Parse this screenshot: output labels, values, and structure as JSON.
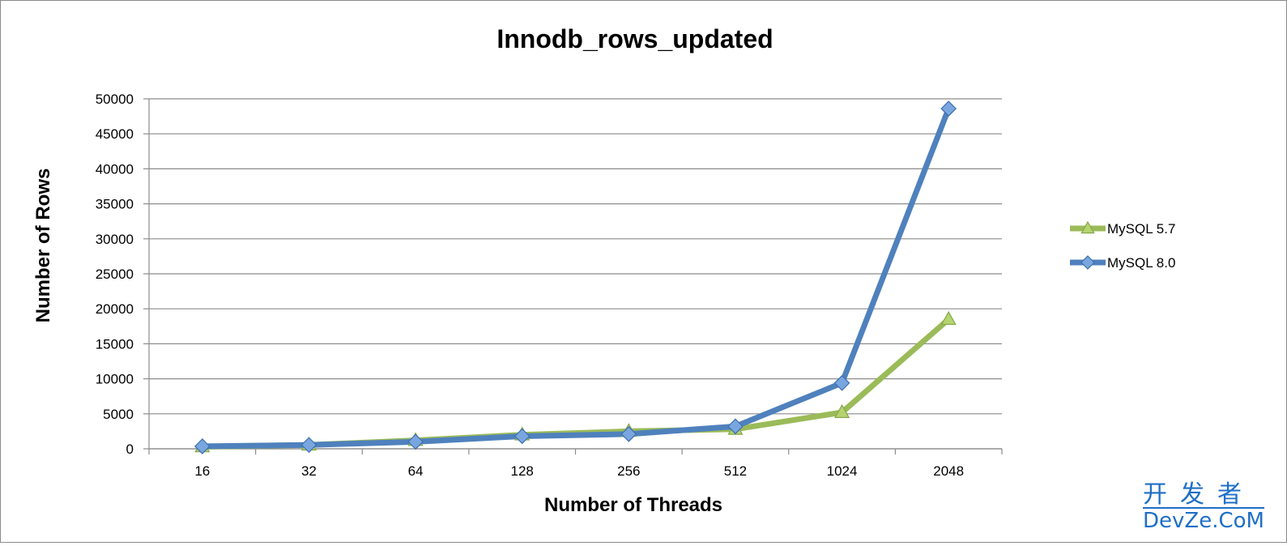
{
  "chart_data": {
    "type": "line",
    "title": "Innodb_rows_updated",
    "xlabel": "Number of Threads",
    "ylabel": "Number of Rows",
    "categories": [
      "16",
      "32",
      "64",
      "128",
      "256",
      "512",
      "1024",
      "2048"
    ],
    "yticks": [
      "0",
      "5000",
      "10000",
      "15000",
      "20000",
      "25000",
      "30000",
      "35000",
      "40000",
      "45000",
      "50000"
    ],
    "ylim": [
      0,
      50000
    ],
    "grid": true,
    "legend_position": "right",
    "series": [
      {
        "name": "MySQL 5.7",
        "color": "#9bbb59",
        "marker": "triangle",
        "values": [
          300,
          550,
          1200,
          2000,
          2500,
          2800,
          5200,
          18500
        ]
      },
      {
        "name": "MySQL 8.0",
        "color": "#4f81bd",
        "marker": "diamond",
        "values": [
          350,
          550,
          1000,
          1800,
          2100,
          3200,
          9400,
          48600
        ]
      }
    ]
  },
  "watermark": {
    "chinese": "开发者",
    "latin": "DevZe.CoM",
    "color": "#1f6fc6"
  }
}
